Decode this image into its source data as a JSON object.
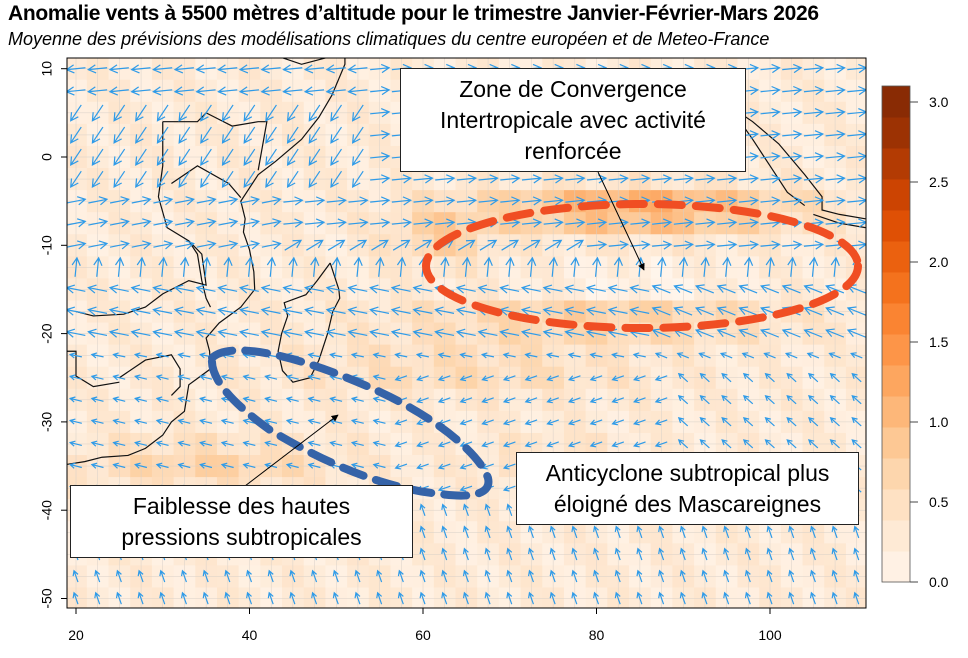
{
  "title": "Anomalie vents à 5500 mètres d’altitude pour le trimestre Janvier-Février-Mars 2026",
  "subtitle": "Moyenne des prévisions des modélisations climatiques du centre européen et de Meteo-France",
  "chart_data": {
    "type": "map",
    "xlim": [
      19,
      111
    ],
    "ylim": [
      -51,
      11
    ],
    "x_ticks": [
      "20",
      "40",
      "60",
      "80",
      "100"
    ],
    "y_ticks": [
      "10",
      "0",
      "-10",
      "-20",
      "-30",
      "-40",
      "-50"
    ],
    "grid": true,
    "colorbar": {
      "range": [
        0,
        3.1
      ],
      "ticks": [
        "0.0",
        "0.5",
        "1.0",
        "1.5",
        "2.0",
        "2.5",
        "3.0"
      ],
      "palette": [
        "#fff5eb",
        "#fee6ce",
        "#fdd0a2",
        "#fdae6b",
        "#fd8d3c",
        "#f16913",
        "#d94801",
        "#a63603",
        "#7f2704"
      ],
      "placement": "right"
    },
    "wind_arrow_color": "#2f9be8"
  },
  "annotations": {
    "itcz": {
      "text_lines": [
        "Zone de Convergence",
        "Intertropicale avec activité",
        "renforcée"
      ],
      "outline_color": "#f04e23"
    },
    "anticyclone": {
      "text_lines": [
        "Anticyclone subtropical plus",
        "éloigné des Mascareignes"
      ]
    },
    "faiblesse": {
      "text_lines": [
        "Faiblesse des hautes",
        "pressions subtropicales"
      ],
      "outline_color": "#3563a8"
    }
  }
}
